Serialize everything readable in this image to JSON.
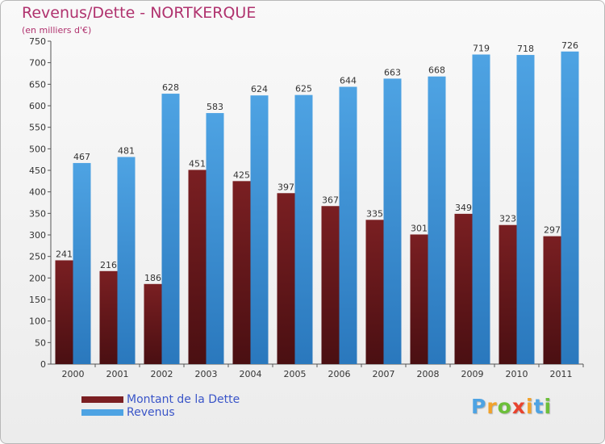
{
  "colors": {
    "title": "#b0326e",
    "dette": "#7a1f22",
    "revenus": "#4ea3e3",
    "legend_text": "#3a55c8",
    "axis_text": "#333333"
  },
  "chart_data": {
    "type": "bar",
    "title": "Revenus/Dette - NORTKERQUE",
    "subtitle": "(en milliers d'€)",
    "xlabel": "",
    "ylabel": "",
    "ylim": [
      0,
      750
    ],
    "y_ticks": [
      0,
      50,
      100,
      150,
      200,
      250,
      300,
      350,
      400,
      450,
      500,
      550,
      600,
      650,
      700,
      750
    ],
    "categories": [
      "2000",
      "2001",
      "2002",
      "2003",
      "2004",
      "2005",
      "2006",
      "2007",
      "2008",
      "2009",
      "2010",
      "2011"
    ],
    "series": [
      {
        "name": "Montant de la Dette",
        "values": [
          241,
          216,
          186,
          451,
          425,
          397,
          367,
          335,
          301,
          349,
          323,
          297
        ]
      },
      {
        "name": "Revenus",
        "values": [
          467,
          481,
          628,
          583,
          624,
          625,
          644,
          663,
          668,
          719,
          718,
          726
        ]
      }
    ],
    "grid": false,
    "legend": "bottom-left"
  },
  "logo": {
    "letters": [
      "P",
      "r",
      "o",
      "x",
      "i",
      "t",
      "i"
    ]
  }
}
